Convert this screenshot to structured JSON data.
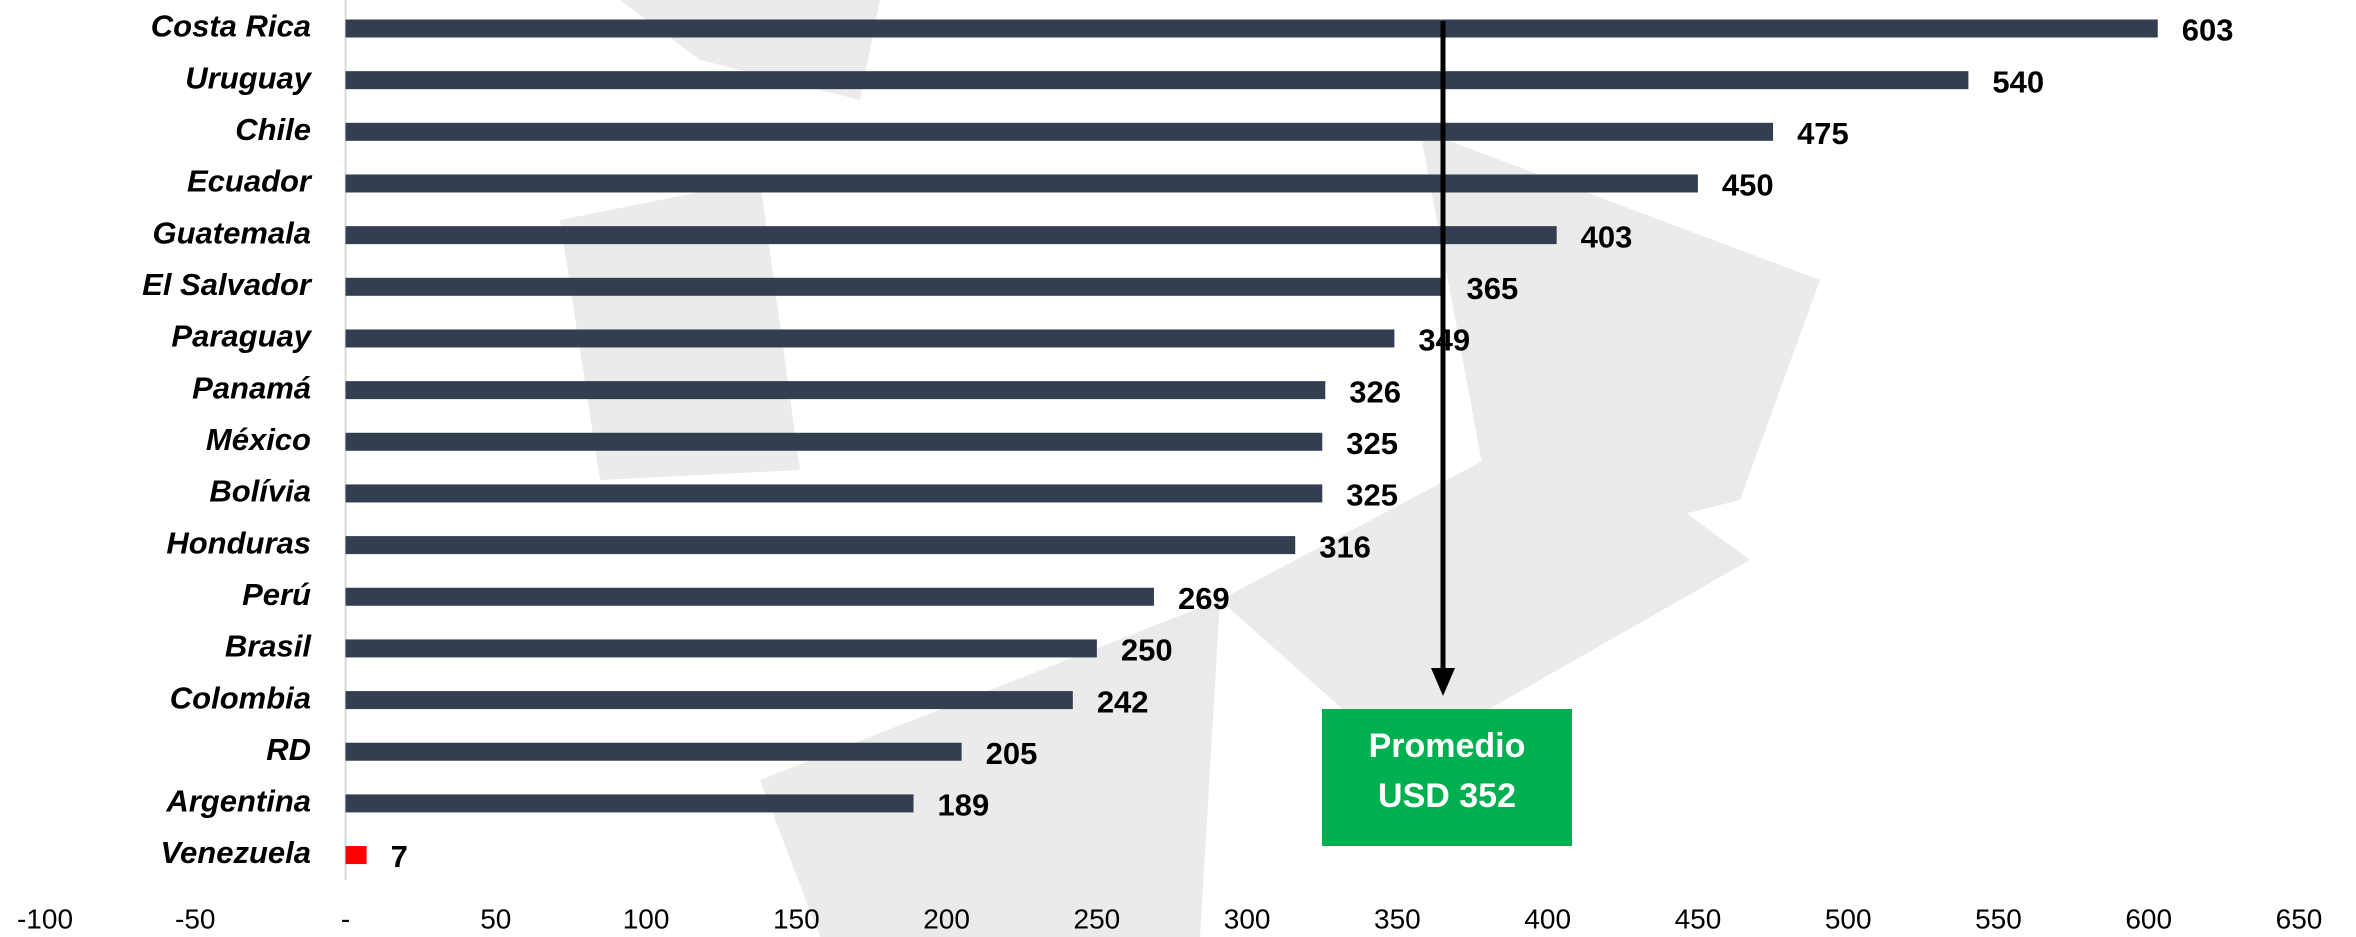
{
  "chart_data": {
    "type": "bar",
    "orientation": "horizontal",
    "categories": [
      "Costa Rica",
      "Uruguay",
      "Chile",
      "Ecuador",
      "Guatemala",
      "El Salvador",
      "Paraguay",
      "Panamá",
      "México",
      "Bolívia",
      "Honduras",
      "Perú",
      "Brasil",
      "Colombia",
      "RD",
      "Argentina",
      "Venezuela"
    ],
    "values": [
      603,
      540,
      475,
      450,
      403,
      365,
      349,
      326,
      325,
      325,
      316,
      269,
      250,
      242,
      205,
      189,
      7
    ],
    "colors": [
      "#333f50",
      "#333f50",
      "#333f50",
      "#333f50",
      "#333f50",
      "#333f50",
      "#333f50",
      "#333f50",
      "#333f50",
      "#333f50",
      "#333f50",
      "#333f50",
      "#333f50",
      "#333f50",
      "#333f50",
      "#333f50",
      "#ff0000"
    ],
    "xlim": [
      -100,
      650
    ],
    "xticks": [
      -100,
      -50,
      {
        "value": 0,
        "label": "-"
      },
      50,
      100,
      150,
      200,
      250,
      300,
      350,
      400,
      450,
      500,
      550,
      600,
      650
    ],
    "annotation": [
      "Promedio",
      "USD 352"
    ],
    "annotation_color": "#00b050"
  }
}
